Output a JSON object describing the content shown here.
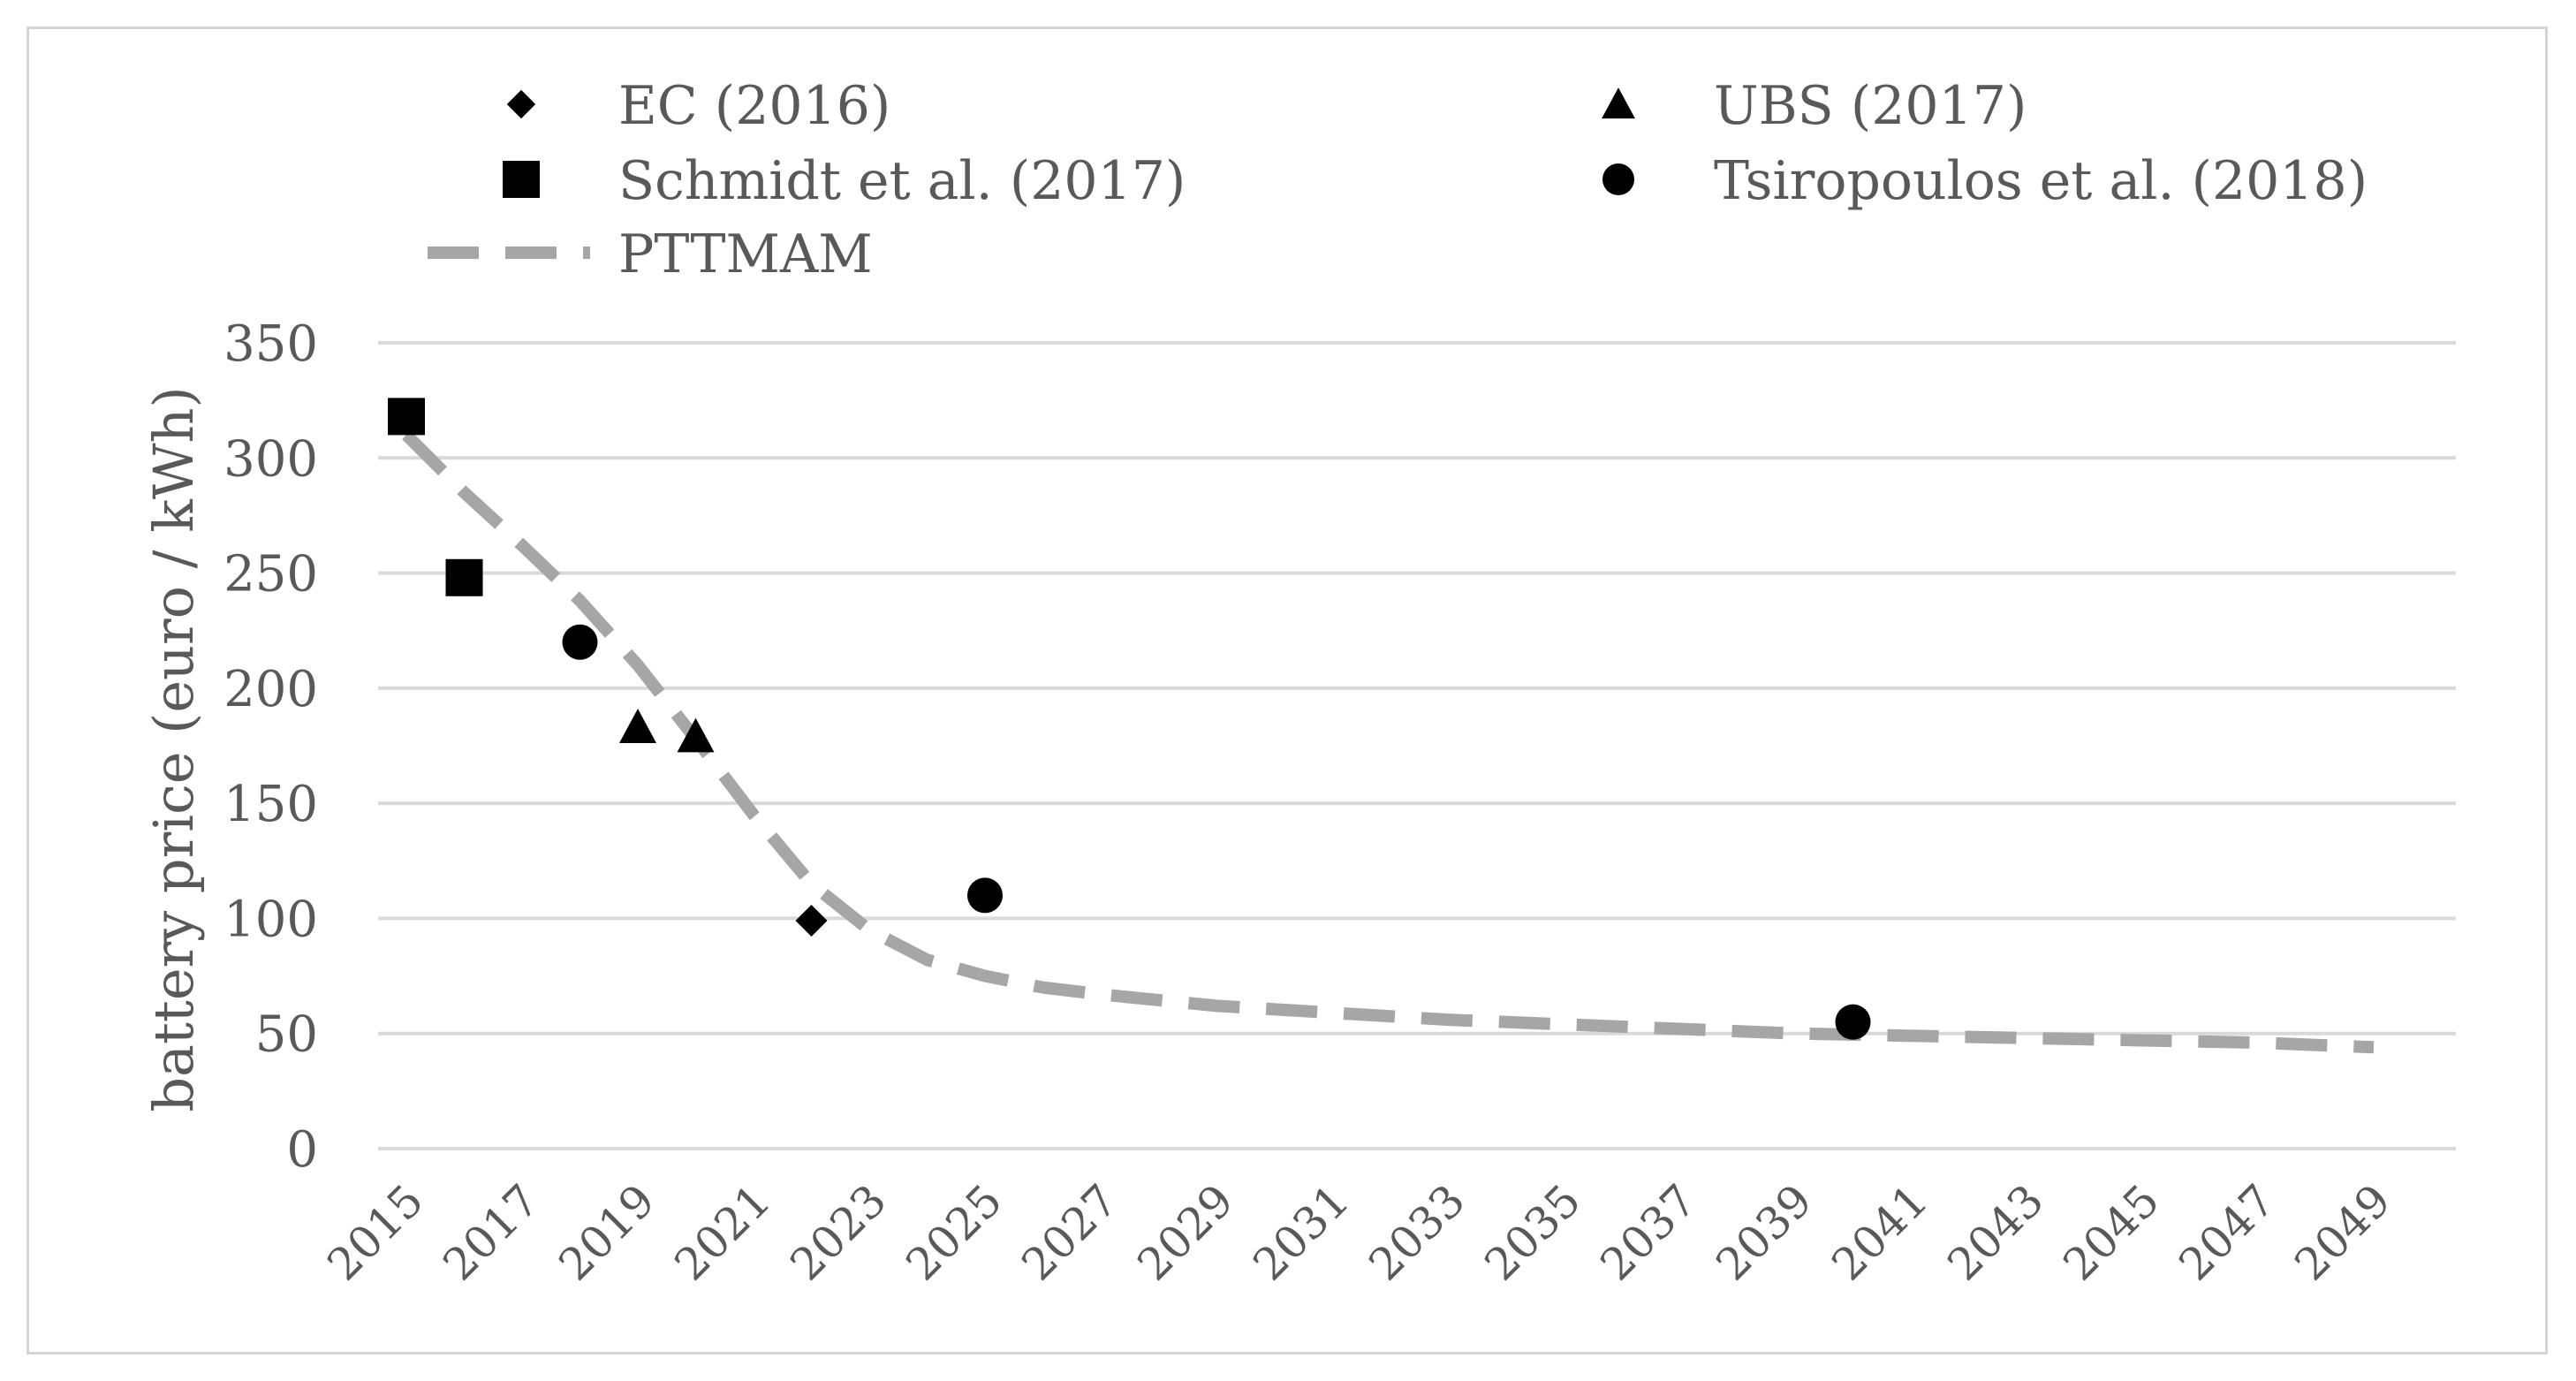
{
  "chart_data": {
    "type": "scatter",
    "title": "",
    "xlabel": "",
    "ylabel": "battery price (euro / kWh)",
    "ylim": [
      0,
      350
    ],
    "yticks": [
      0,
      50,
      100,
      150,
      200,
      250,
      300,
      350
    ],
    "xlim": [
      2015,
      2049
    ],
    "xticks": [
      "2015",
      "2017",
      "2019",
      "2021",
      "2023",
      "2025",
      "2027",
      "2029",
      "2031",
      "2033",
      "2035",
      "2037",
      "2039",
      "2041",
      "2043",
      "2045",
      "2047",
      "2049"
    ],
    "grid": true,
    "legend_position": "top",
    "series": [
      {
        "name": "EC (2016)",
        "marker": "diamond",
        "points": [
          {
            "x": 2022,
            "y": 99
          }
        ]
      },
      {
        "name": "UBS (2017)",
        "marker": "triangle",
        "points": [
          {
            "x": 2019,
            "y": 183
          },
          {
            "x": 2020,
            "y": 179
          }
        ]
      },
      {
        "name": "Schmidt et al. (2017)",
        "marker": "square",
        "points": [
          {
            "x": 2015,
            "y": 318
          },
          {
            "x": 2016,
            "y": 248
          }
        ]
      },
      {
        "name": "Tsiropoulos et al. (2018)",
        "marker": "circle",
        "points": [
          {
            "x": 2018,
            "y": 220
          },
          {
            "x": 2025,
            "y": 110
          },
          {
            "x": 2040,
            "y": 55
          }
        ]
      },
      {
        "name": "PTTMAM",
        "marker": "dashed-line",
        "points": [
          {
            "x": 2015,
            "y": 310
          },
          {
            "x": 2016,
            "y": 285
          },
          {
            "x": 2017,
            "y": 262
          },
          {
            "x": 2018,
            "y": 238
          },
          {
            "x": 2019,
            "y": 210
          },
          {
            "x": 2020,
            "y": 178
          },
          {
            "x": 2021,
            "y": 145
          },
          {
            "x": 2022,
            "y": 115
          },
          {
            "x": 2023,
            "y": 95
          },
          {
            "x": 2024,
            "y": 82
          },
          {
            "x": 2025,
            "y": 75
          },
          {
            "x": 2026,
            "y": 70
          },
          {
            "x": 2027,
            "y": 67
          },
          {
            "x": 2029,
            "y": 62
          },
          {
            "x": 2031,
            "y": 59
          },
          {
            "x": 2033,
            "y": 56
          },
          {
            "x": 2035,
            "y": 54
          },
          {
            "x": 2037,
            "y": 52
          },
          {
            "x": 2039,
            "y": 50
          },
          {
            "x": 2041,
            "y": 49
          },
          {
            "x": 2043,
            "y": 48
          },
          {
            "x": 2045,
            "y": 47
          },
          {
            "x": 2047,
            "y": 46
          },
          {
            "x": 2049,
            "y": 44
          }
        ]
      }
    ]
  },
  "colors": {
    "markers": "#000000",
    "trend_line": "#a6a6a6",
    "grid": "#d9d9d9",
    "text": "#595959",
    "frame": "#d4d4d4"
  }
}
